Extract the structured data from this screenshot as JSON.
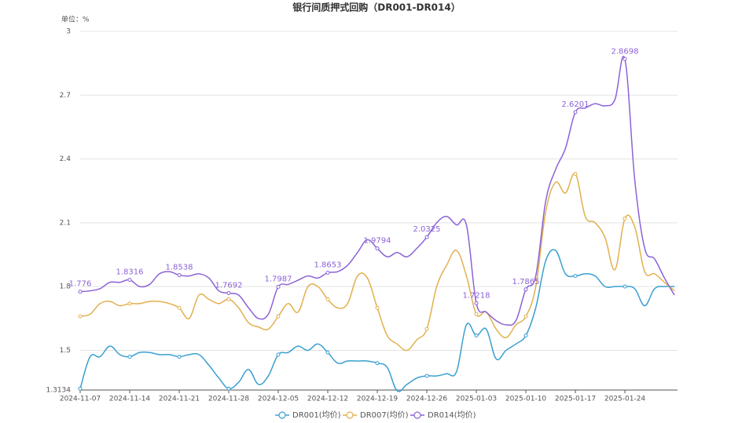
{
  "chart_data": {
    "type": "line",
    "title": "银行间质押式回购（DR001-DR014）",
    "y_unit": "单位：%",
    "categories": [
      "2024-11-07",
      null,
      null,
      null,
      null,
      "2024-11-14",
      null,
      null,
      null,
      null,
      "2024-11-21",
      null,
      null,
      null,
      null,
      "2024-11-28",
      null,
      null,
      null,
      null,
      "2024-12-05",
      null,
      null,
      null,
      null,
      "2024-12-12",
      null,
      null,
      null,
      null,
      "2024-12-19",
      null,
      null,
      null,
      null,
      "2024-12-26",
      null,
      null,
      null,
      null,
      "2025-01-03",
      null,
      null,
      null,
      null,
      "2025-01-10",
      null,
      null,
      null,
      null,
      "2025-01-17",
      null,
      null,
      null,
      null,
      "2025-01-24",
      null,
      null,
      null,
      null,
      null
    ],
    "series": [
      {
        "name": "DR001(均价)",
        "color": "#3a9fd0",
        "values": [
          1.32,
          1.47,
          1.47,
          1.52,
          1.48,
          1.47,
          1.49,
          1.49,
          1.48,
          1.48,
          1.47,
          1.48,
          1.48,
          1.43,
          1.37,
          1.32,
          1.35,
          1.41,
          1.34,
          1.38,
          1.48,
          1.49,
          1.52,
          1.5,
          1.53,
          1.49,
          1.44,
          1.45,
          1.45,
          1.45,
          1.44,
          1.42,
          1.31,
          1.34,
          1.37,
          1.38,
          1.38,
          1.39,
          1.4,
          1.62,
          1.57,
          1.6,
          1.46,
          1.5,
          1.53,
          1.57,
          1.7,
          1.92,
          1.97,
          1.86,
          1.85,
          1.86,
          1.85,
          1.8,
          1.8,
          1.8,
          1.79,
          1.71,
          1.79,
          1.8,
          1.8
        ]
      },
      {
        "name": "DR007(均价)",
        "color": "#e2b04e",
        "values": [
          1.66,
          1.67,
          1.72,
          1.73,
          1.71,
          1.72,
          1.72,
          1.73,
          1.73,
          1.72,
          1.7,
          1.65,
          1.76,
          1.74,
          1.72,
          1.74,
          1.7,
          1.63,
          1.61,
          1.6,
          1.66,
          1.72,
          1.68,
          1.8,
          1.8,
          1.74,
          1.7,
          1.72,
          1.85,
          1.84,
          1.7,
          1.57,
          1.53,
          1.5,
          1.55,
          1.6,
          1.8,
          1.9,
          1.97,
          1.85,
          1.67,
          1.68,
          1.6,
          1.56,
          1.62,
          1.66,
          1.8,
          2.15,
          2.29,
          2.24,
          2.33,
          2.13,
          2.1,
          2.03,
          1.88,
          2.12,
          2.08,
          1.87,
          1.86,
          1.82,
          1.78
        ]
      },
      {
        "name": "DR014(均价)",
        "color": "#8c62d6",
        "values": [
          1.776,
          1.78,
          1.79,
          1.82,
          1.82,
          1.8316,
          1.8,
          1.81,
          1.86,
          1.87,
          1.8538,
          1.85,
          1.86,
          1.84,
          1.78,
          1.7692,
          1.76,
          1.7,
          1.65,
          1.67,
          1.7987,
          1.81,
          1.83,
          1.85,
          1.84,
          1.8653,
          1.87,
          1.9,
          1.96,
          2.02,
          1.9794,
          1.94,
          1.96,
          1.94,
          1.98,
          2.0325,
          2.1,
          2.13,
          2.09,
          2.09,
          1.7218,
          1.68,
          1.64,
          1.62,
          1.64,
          1.7865,
          1.85,
          2.2,
          2.35,
          2.45,
          2.6201,
          2.64,
          2.66,
          2.65,
          2.68,
          2.8698,
          2.3,
          1.98,
          1.93,
          1.84,
          1.76
        ]
      }
    ],
    "ylim": [
      1.3134,
      3
    ],
    "yticks": [
      1.3134,
      1.5,
      1.8,
      2.1,
      2.4,
      2.7,
      3
    ],
    "grid": true,
    "legend": "bottom"
  }
}
